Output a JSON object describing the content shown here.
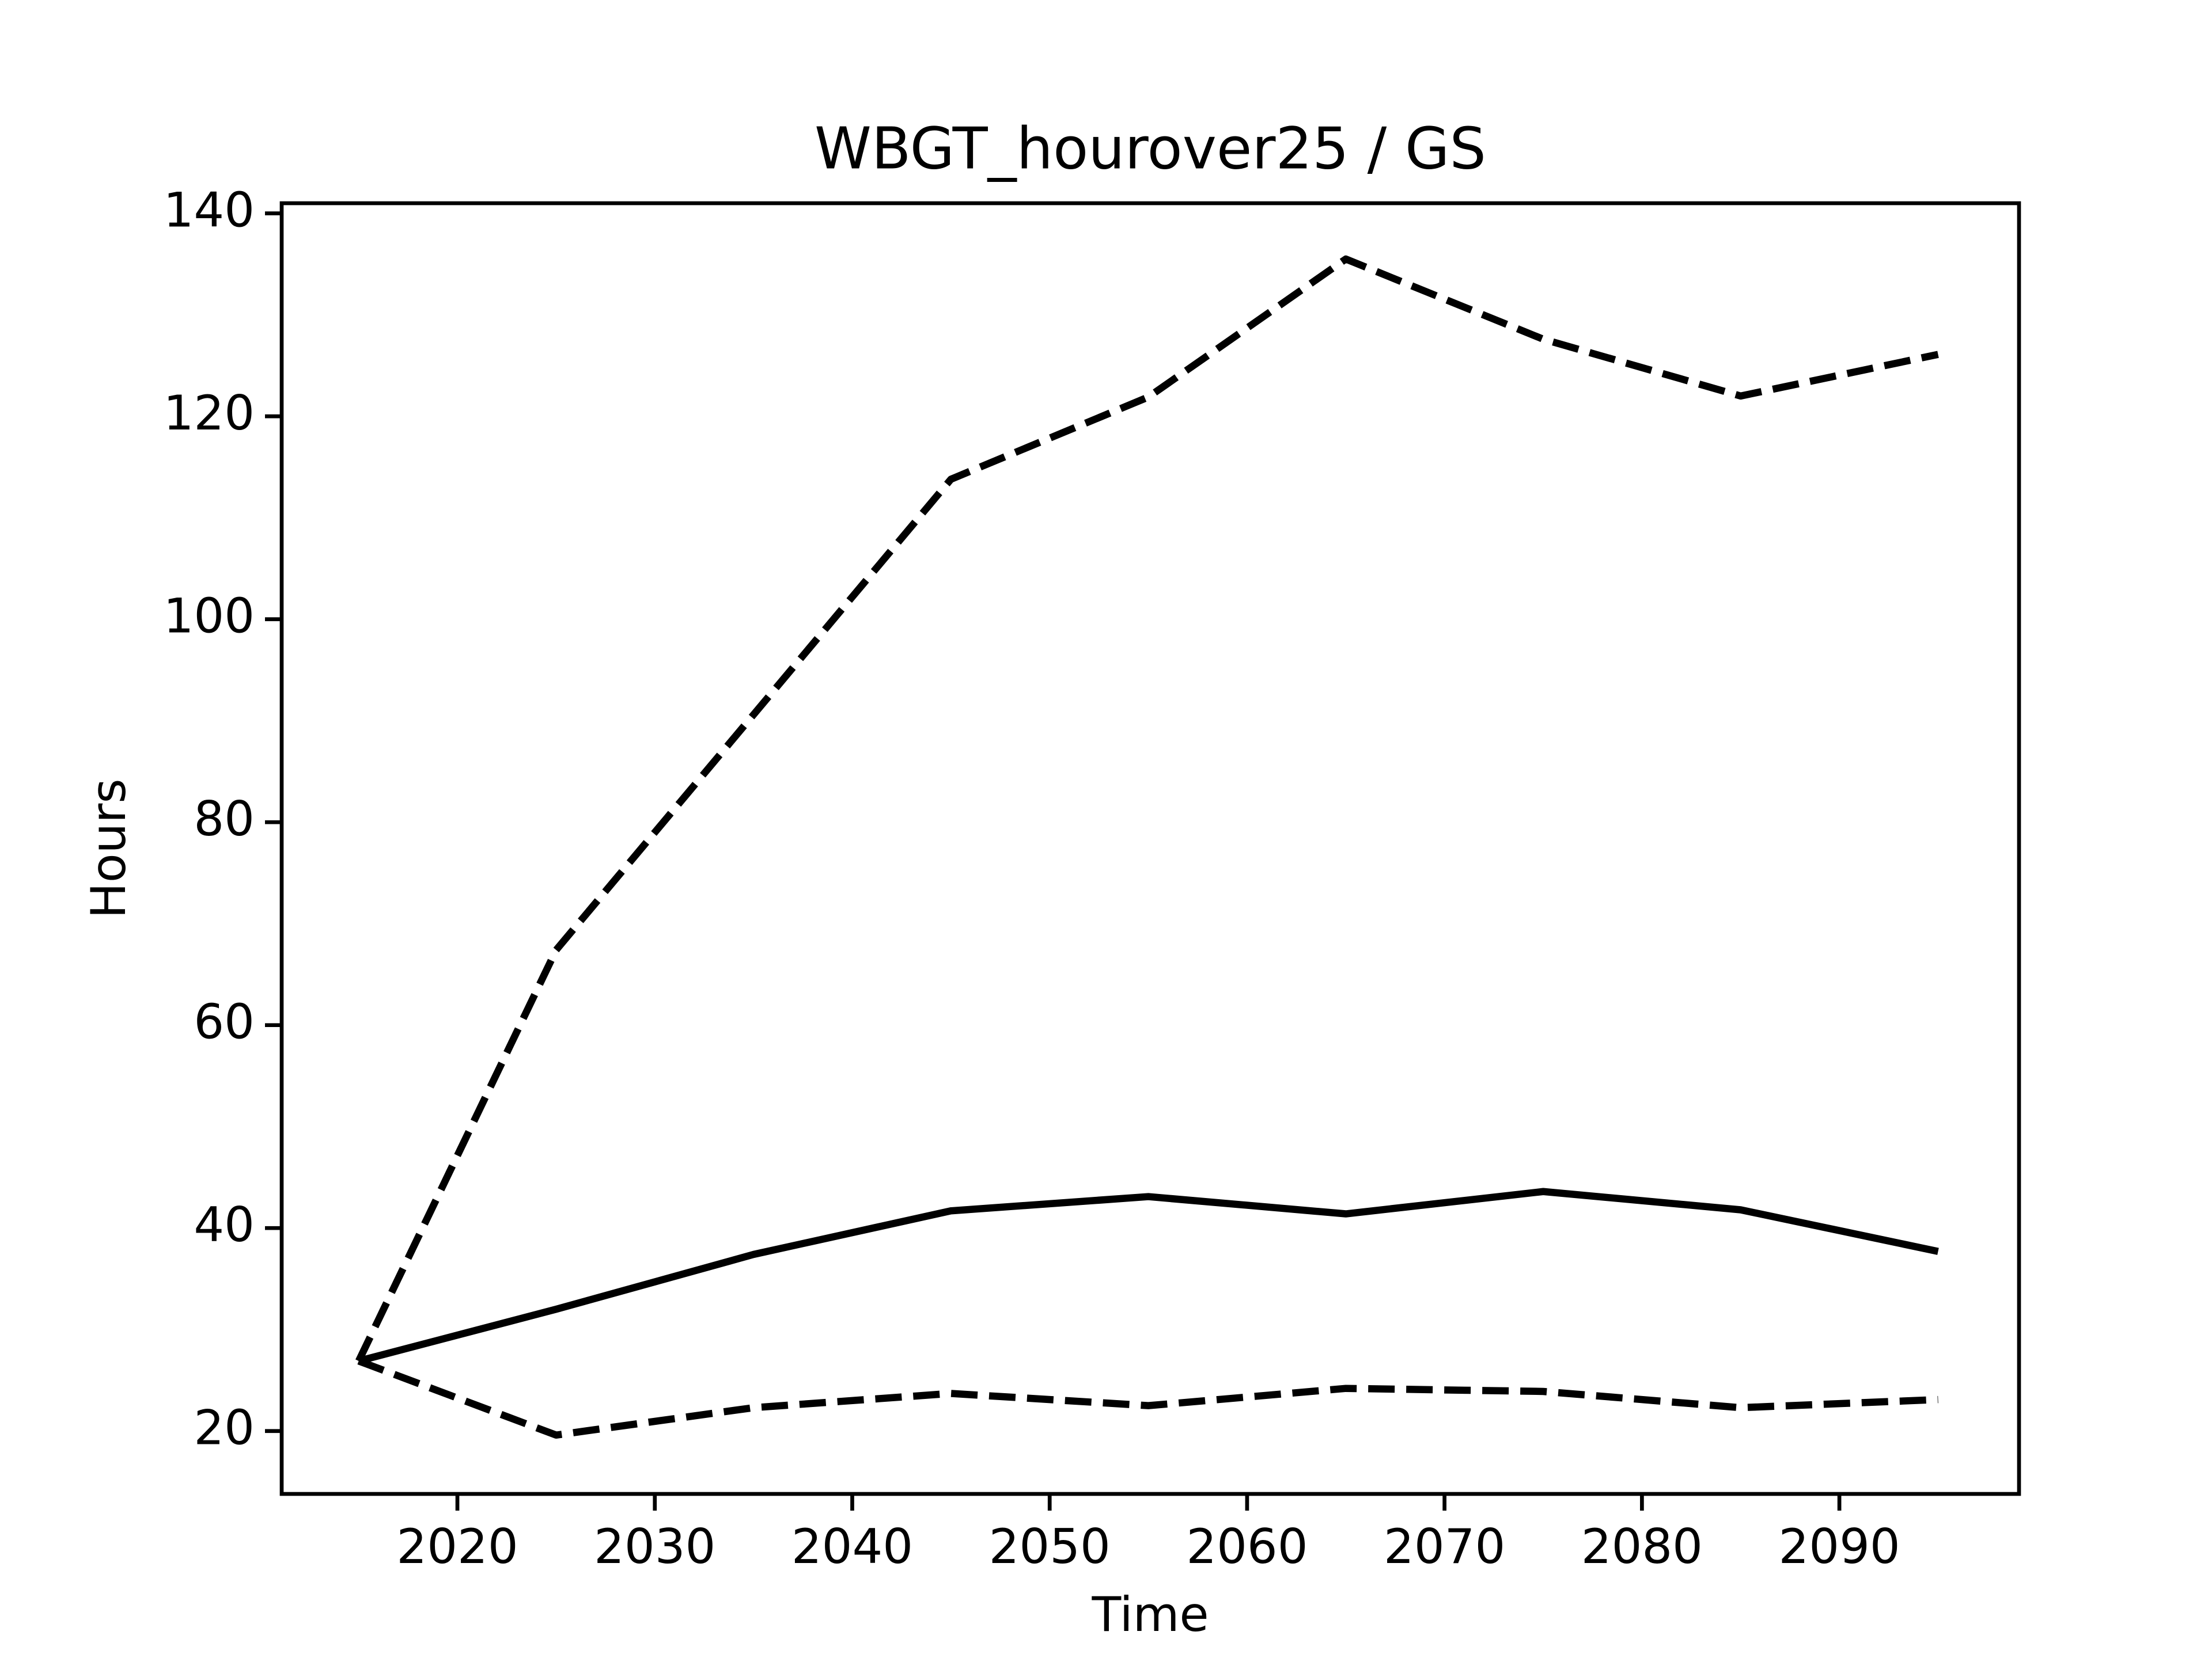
{
  "chart_data": {
    "type": "line",
    "title": "WBGT_hourover25 / GS",
    "x_label": "Time",
    "y_label": "Hours",
    "x": [
      2015,
      2025,
      2035,
      2045,
      2055,
      2065,
      2075,
      2085,
      2095
    ],
    "series": [
      {
        "color": "#000000",
        "linestyle": "dashed",
        "values": [
          26.9,
          67.4,
          90.6,
          113.8,
          121.9,
          135.5,
          127.6,
          122.0,
          126.1
        ]
      },
      {
        "color": "#000000",
        "linestyle": "solid",
        "values": [
          26.9,
          32.0,
          37.4,
          41.7,
          43.1,
          41.4,
          43.6,
          41.8,
          37.7
        ]
      },
      {
        "color": "#000000",
        "linestyle": "dashed",
        "values": [
          26.9,
          19.6,
          22.3,
          23.7,
          22.5,
          24.2,
          23.9,
          22.3,
          23.1
        ]
      }
    ],
    "xlim": [
      2011.1,
      2099.1
    ],
    "ylim": [
      13.8,
      141.0
    ],
    "xticks": [
      2020,
      2030,
      2040,
      2050,
      2060,
      2070,
      2080,
      2090
    ],
    "yticks": [
      20,
      40,
      60,
      80,
      100,
      120,
      140
    ],
    "grid": false
  }
}
